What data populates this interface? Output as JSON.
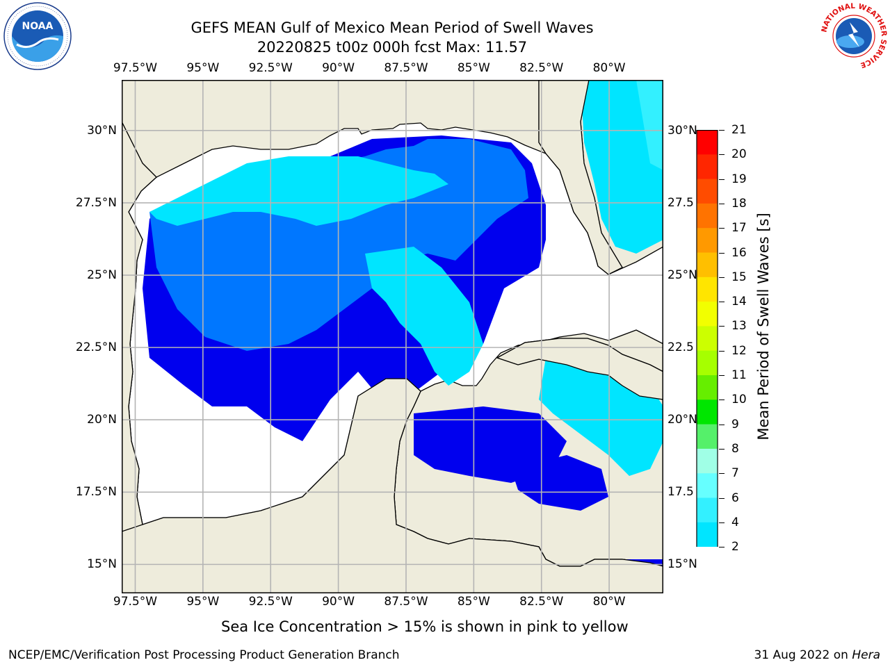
{
  "title": {
    "line1": "GEFS MEAN Gulf of Mexico Mean Period of Swell Waves",
    "line2": "20220825 t00z 000h fcst   Max: 11.57"
  },
  "map": {
    "lon_ticks": [
      "97.5°W",
      "95°W",
      "92.5°W",
      "90°W",
      "87.5°W",
      "85°W",
      "82.5°W",
      "80°W"
    ],
    "lat_ticks_left": [
      "30°N",
      "27.5°N",
      "25°N",
      "22.5°N",
      "20°N",
      "17.5°N",
      "15°N"
    ],
    "lat_ticks_right": [
      "30°N",
      "27.5",
      "25°N",
      "22.5",
      "20°N",
      "17.5",
      "15°N"
    ],
    "extent": {
      "lon": [
        -98,
        -78
      ],
      "lat": [
        14,
        31.75
      ]
    }
  },
  "colorbar": {
    "label": "Mean Period of Swell Waves [s]",
    "ticks": [
      "21",
      "20",
      "19",
      "18",
      "17",
      "16",
      "15",
      "14",
      "13",
      "12",
      "11",
      "10",
      "9",
      "8",
      "7",
      "6",
      "4",
      "2"
    ],
    "colors": [
      "#ff0000",
      "#ff2600",
      "#ff4c00",
      "#ff7300",
      "#ff9900",
      "#ffbf00",
      "#ffe500",
      "#f2ff00",
      "#ccff00",
      "#a6ff00",
      "#66ee00",
      "#00e600",
      "#55f06a",
      "#a0ffe6",
      "#66ffff",
      "#33f0ff",
      "#00e5ff",
      "#0077ff"
    ],
    "extend_color": "#0000ee"
  },
  "caption": "Sea Ice Concentration > 15% is shown in pink to yellow",
  "footer": {
    "left": "NCEP/EMC/Verification Post Processing Product Generation Branch",
    "right_date": "31 Aug 2022 on ",
    "right_host": "Hera"
  },
  "logos": {
    "noaa": "NOAA",
    "nws_ring": "NATIONAL WEATHER SERVICE"
  },
  "colors": {
    "land": "#eeecdc",
    "ocean": "#ffffff",
    "dark_blue": "#0000ee",
    "blue": "#0077ff",
    "cyan": "#00e5ff",
    "light_cyan": "#33f0ff",
    "green": "#55f06a",
    "bright_green": "#00e600"
  }
}
